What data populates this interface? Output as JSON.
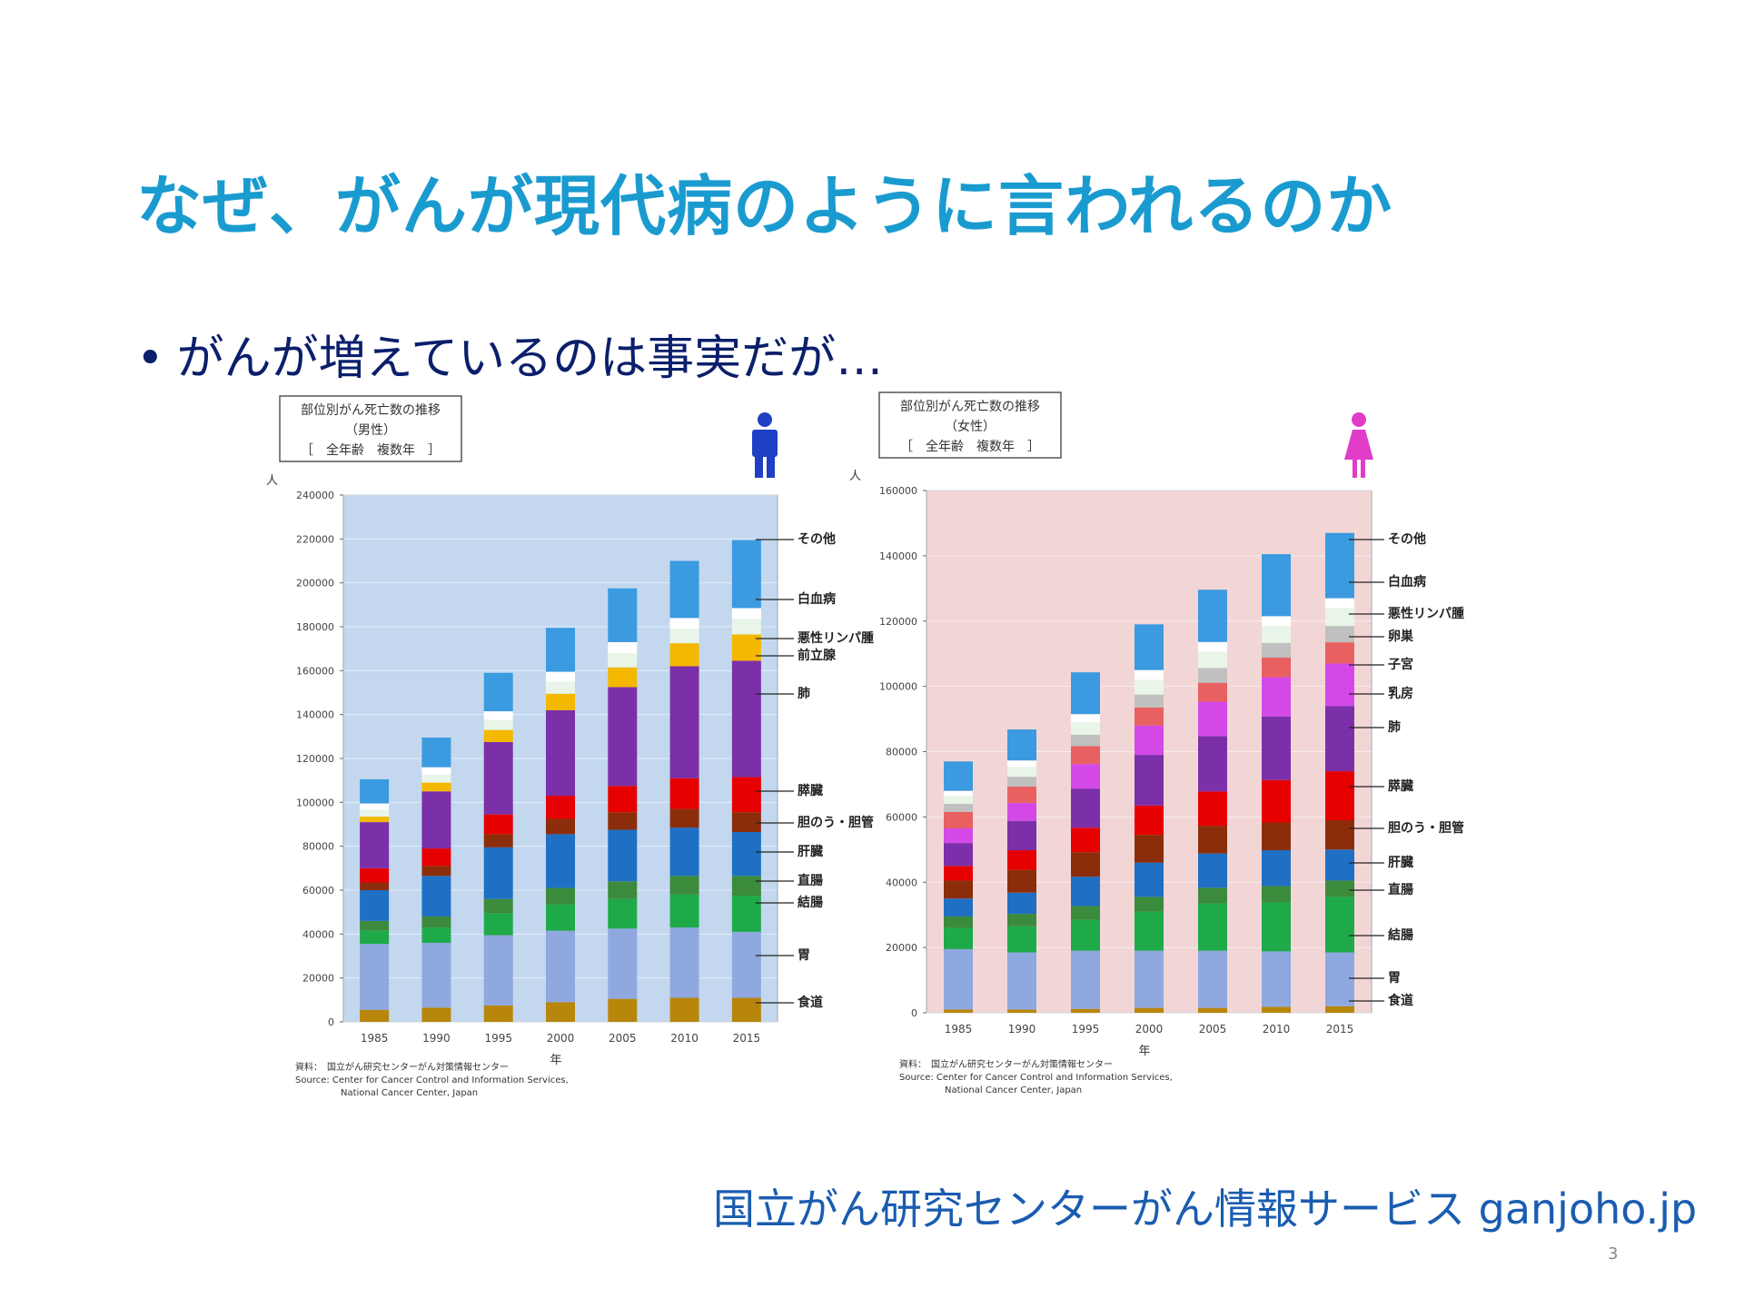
{
  "slide": {
    "title": "なぜ、がんが現代病のように言われるのか",
    "bullet_marker": "•",
    "bullet": "がんが増えているのは事実だが…",
    "source_credit": "国立がん研究センターがん情報サービス ganjoho.jp",
    "page_number": "3"
  },
  "chart_data": [
    {
      "type": "bar",
      "stacked": true,
      "title": "部位別がん死亡数の推移",
      "subtitle": "（男性）",
      "subtitle2": "［　全年齢　複数年　］",
      "ylabel": "人",
      "xlabel": "年",
      "ylim": [
        0,
        240000
      ],
      "yticks": [
        "0",
        "20000",
        "40000",
        "60000",
        "80000",
        "100000",
        "120000",
        "140000",
        "160000",
        "180000",
        "200000",
        "220000",
        "240000"
      ],
      "categories": [
        "1985",
        "1990",
        "1995",
        "2000",
        "2005",
        "2010",
        "2015"
      ],
      "background": "#c3d8ef",
      "figure_icon_color": "#1f3fc4",
      "legend_placement": "right",
      "source_lines": [
        "資料：　国立がん研究センターがん対策情報センター",
        "Source: Center for Cancer Control and Information Services,",
        "National Cancer Center, Japan"
      ],
      "series": [
        {
          "name": "食道",
          "color": "#b8860b",
          "values": [
            5500,
            6500,
            7500,
            9000,
            10500,
            11000,
            11000
          ]
        },
        {
          "name": "胃",
          "color": "#8fa8e0",
          "values": [
            30000,
            29500,
            32000,
            32500,
            32000,
            32000,
            30000
          ]
        },
        {
          "name": "結腸",
          "color": "#1faa4a",
          "values": [
            6000,
            7000,
            10000,
            12000,
            13500,
            15000,
            16500
          ]
        },
        {
          "name": "直腸",
          "color": "#3c8a3c",
          "values": [
            4500,
            5000,
            6500,
            7500,
            8000,
            8500,
            9000
          ]
        },
        {
          "name": "肝臓",
          "color": "#1f6fc4",
          "values": [
            14000,
            18500,
            23500,
            24500,
            23500,
            22000,
            20000
          ]
        },
        {
          "name": "胆のう・胆管",
          "color": "#8b2d0a",
          "values": [
            3500,
            4500,
            6000,
            7000,
            8000,
            8500,
            9000
          ]
        },
        {
          "name": "膵臓",
          "color": "#e60000",
          "values": [
            6500,
            8000,
            9000,
            10500,
            12000,
            14000,
            16000
          ]
        },
        {
          "name": "肺",
          "color": "#7b2fa8",
          "values": [
            21000,
            26000,
            33000,
            39000,
            45000,
            51000,
            53000
          ]
        },
        {
          "name": "前立腺",
          "color": "#f5b800",
          "values": [
            2500,
            4000,
            5500,
            7500,
            9000,
            10500,
            12000
          ]
        },
        {
          "name": "悪性リンパ腫",
          "color": "#e8f5e8",
          "values": [
            3000,
            3500,
            4500,
            5500,
            6500,
            6500,
            7000
          ]
        },
        {
          "name": "白血病",
          "color": "#ffffff",
          "values": [
            3000,
            3500,
            4000,
            4500,
            5000,
            5000,
            5000
          ]
        },
        {
          "name": "その他",
          "color": "#3b9ae0",
          "values": [
            11000,
            13500,
            17500,
            20000,
            24500,
            26000,
            31000
          ]
        }
      ]
    },
    {
      "type": "bar",
      "stacked": true,
      "title": "部位別がん死亡数の推移",
      "subtitle": "（女性）",
      "subtitle2": "［　全年齢　複数年　］",
      "ylabel": "人",
      "xlabel": "年",
      "ylim": [
        0,
        160000
      ],
      "yticks": [
        "0",
        "20000",
        "40000",
        "60000",
        "80000",
        "100000",
        "120000",
        "140000",
        "160000"
      ],
      "categories": [
        "1985",
        "1990",
        "1995",
        "2000",
        "2005",
        "2010",
        "2015"
      ],
      "background": "#f2d6d6",
      "figure_icon_color": "#e03cc8",
      "legend_placement": "right",
      "source_lines": [
        "資料：　国立がん研究センターがん対策情報センター",
        "Source: Center for Cancer Control and Information Services,",
        "National Cancer Center, Japan"
      ],
      "series": [
        {
          "name": "食道",
          "color": "#b8860b",
          "values": [
            1000,
            1000,
            1200,
            1500,
            1500,
            1800,
            2000
          ]
        },
        {
          "name": "胃",
          "color": "#8fa8e0",
          "values": [
            18500,
            17500,
            17800,
            17500,
            17500,
            17000,
            16500
          ]
        },
        {
          "name": "結腸",
          "color": "#1faa4a",
          "values": [
            6500,
            8000,
            9500,
            12000,
            14500,
            15000,
            17000
          ]
        },
        {
          "name": "直腸",
          "color": "#3c8a3c",
          "values": [
            3500,
            3800,
            4200,
            4500,
            4800,
            5000,
            5000
          ]
        },
        {
          "name": "肝臓",
          "color": "#1f6fc4",
          "values": [
            5500,
            6500,
            9000,
            10500,
            10500,
            11000,
            9500
          ]
        },
        {
          "name": "胆のう・胆管",
          "color": "#8b2d0a",
          "values": [
            5500,
            7000,
            7500,
            8500,
            8500,
            8500,
            9000
          ]
        },
        {
          "name": "膵臓",
          "color": "#e60000",
          "values": [
            4500,
            6000,
            7500,
            9000,
            10500,
            13000,
            15000
          ]
        },
        {
          "name": "肺",
          "color": "#7b2fa8",
          "values": [
            7000,
            9000,
            12000,
            15500,
            17000,
            19500,
            20000
          ]
        },
        {
          "name": "乳房",
          "color": "#d448e8",
          "values": [
            4500,
            5500,
            7500,
            9000,
            10500,
            12000,
            13000
          ]
        },
        {
          "name": "子宮",
          "color": "#e86060",
          "values": [
            5000,
            5000,
            5500,
            5500,
            5800,
            6000,
            6500
          ]
        },
        {
          "name": "卵巣",
          "color": "#c0c0c0",
          "values": [
            2500,
            3000,
            3500,
            4000,
            4500,
            4500,
            5000
          ]
        },
        {
          "name": "悪性リンパ腫",
          "color": "#e8f5e8",
          "values": [
            2500,
            3000,
            3800,
            4500,
            5000,
            5200,
            5500
          ]
        },
        {
          "name": "白血病",
          "color": "#ffffff",
          "values": [
            1500,
            2000,
            2500,
            3000,
            3000,
            3000,
            3000
          ]
        },
        {
          "name": "その他",
          "color": "#3b9ae0",
          "values": [
            9000,
            9500,
            12800,
            14000,
            16000,
            19000,
            20000
          ]
        }
      ]
    }
  ]
}
